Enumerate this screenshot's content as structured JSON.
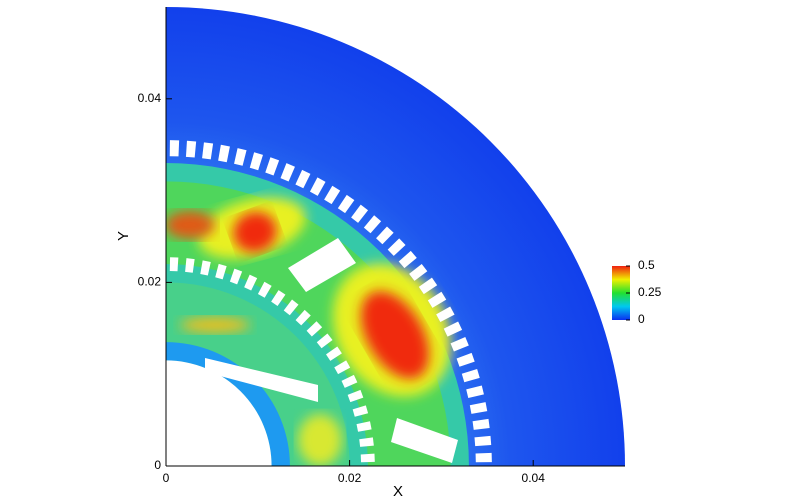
{
  "chart_data": {
    "type": "contour",
    "x_label": "X",
    "y_label": "Y",
    "xlim": [
      0,
      0.05
    ],
    "ylim": [
      0,
      0.05
    ],
    "xticks": [
      0,
      0.02,
      0.04
    ],
    "yticks": [
      0,
      0.02,
      0.04
    ],
    "colorbar": {
      "lim": [
        0,
        0.5
      ],
      "ticks": [
        0,
        0.25,
        0.5
      ],
      "colors": [
        "#0b2ff0",
        "#00c8f0",
        "#22e030",
        "#f0f000",
        "#f02010"
      ]
    }
  }
}
